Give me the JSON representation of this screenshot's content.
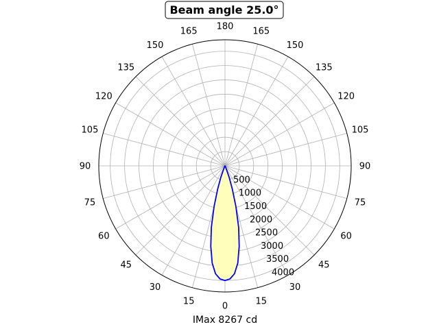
{
  "chart_data": {
    "type": "line",
    "title": "Beam angle 25.0°",
    "xlabel": "IMax 8267 cd",
    "angle_ticks": [
      "0",
      "15",
      "30",
      "45",
      "60",
      "75",
      "90",
      "105",
      "120",
      "135",
      "150",
      "165",
      "180",
      "165",
      "150",
      "135",
      "120",
      "105",
      "90",
      "75",
      "60",
      "45",
      "30",
      "15"
    ],
    "radial_ticks": [
      "500",
      "1000",
      "1500",
      "2000",
      "2500",
      "3000",
      "3500",
      "4000"
    ],
    "rlim": [
      0,
      4400
    ],
    "grid": true,
    "series": [
      {
        "color": "#0000ff",
        "fill": "#ffffbb",
        "points": [
          {
            "angle": 0,
            "r": 4000
          },
          {
            "angle": 2.5,
            "r": 3950
          },
          {
            "angle": 5,
            "r": 3780
          },
          {
            "angle": 7.5,
            "r": 3420
          },
          {
            "angle": 10,
            "r": 2850
          },
          {
            "angle": 12.5,
            "r": 2200
          },
          {
            "angle": 15,
            "r": 1470
          },
          {
            "angle": 17.5,
            "r": 850
          },
          {
            "angle": 20,
            "r": 420
          },
          {
            "angle": 25,
            "r": 60
          },
          {
            "angle": 30,
            "r": 0
          }
        ]
      }
    ]
  }
}
